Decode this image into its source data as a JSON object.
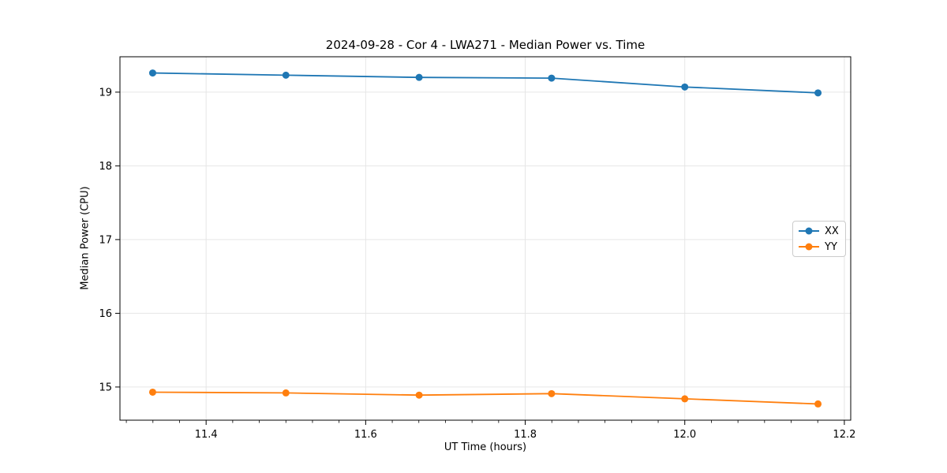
{
  "figure": {
    "background": "#ffffff"
  },
  "chart_data": {
    "type": "line",
    "title": "2024-09-28 - Cor 4 - LWA271 - Median Power vs. Time",
    "xlabel": "UT Time (hours)",
    "ylabel": "Median Power (CPU)",
    "x": [
      11.333,
      11.5,
      11.667,
      11.833,
      12.0,
      12.167
    ],
    "series": [
      {
        "name": "XX",
        "color": "#1f77b4",
        "marker": "circle",
        "values": [
          19.26,
          19.23,
          19.2,
          19.19,
          19.07,
          18.99
        ]
      },
      {
        "name": "YY",
        "color": "#ff7f0e",
        "marker": "circle",
        "values": [
          14.93,
          14.92,
          14.89,
          14.91,
          14.84,
          14.77
        ]
      }
    ],
    "xlim": [
      11.292,
      12.208
    ],
    "ylim": [
      14.55,
      19.48
    ],
    "xticks": [
      11.4,
      11.6,
      11.8,
      12.0,
      12.2
    ],
    "xtick_labels": [
      "11.4",
      "11.6",
      "11.8",
      "12.0",
      "12.2"
    ],
    "yticks": [
      15,
      16,
      17,
      18,
      19
    ],
    "ytick_labels": [
      "15",
      "16",
      "17",
      "18",
      "19"
    ],
    "x_minor_step": 0.0333333,
    "grid": true,
    "grid_color": "#e6e6e6",
    "spine_color": "#000000",
    "legend": {
      "position": "center right",
      "entries": [
        "XX",
        "YY"
      ]
    }
  }
}
